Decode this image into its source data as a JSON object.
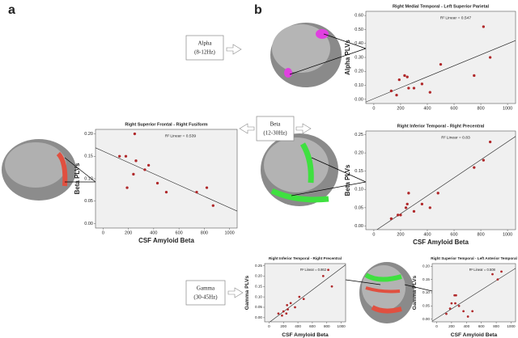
{
  "panel_labels": [
    "a",
    "b"
  ],
  "bands": [
    {
      "name": "Alpha",
      "range": "(8-12Hz)"
    },
    {
      "name": "Beta",
      "range": "(12-30Hz)"
    },
    {
      "name": "Gamma",
      "range": "(30-45Hz)"
    }
  ],
  "chart_data": [
    {
      "type": "scatter",
      "title": "Right Medial Temporal - Left Superior Parietal",
      "fit_label": "R² Linear = 0.547",
      "y_label": "Alpha PLVs",
      "color": "#b0282a",
      "x": [
        130,
        170,
        190,
        230,
        250,
        260,
        300,
        360,
        420,
        500,
        750,
        820,
        870
      ],
      "values": [
        0.06,
        0.03,
        0.14,
        0.17,
        0.16,
        0.08,
        0.08,
        0.11,
        0.05,
        0.25,
        0.17,
        0.52,
        0.3
      ],
      "xlim": [
        -60,
        1060
      ],
      "ylim": [
        -0.03,
        0.63
      ],
      "xticks": [
        0,
        200,
        400,
        600,
        800,
        1000
      ],
      "yticks": [
        {
          "value": 0,
          "label": "0.00"
        },
        {
          "value": 0.1,
          "label": "0.10"
        },
        {
          "value": 0.2,
          "label": "0.20"
        },
        {
          "value": 0.3,
          "label": "0.30"
        },
        {
          "value": 0.4,
          "label": "0.40"
        },
        {
          "value": 0.5,
          "label": "0.50"
        },
        {
          "value": 0.6,
          "label": "0.60"
        }
      ]
    },
    {
      "type": "scatter",
      "title": "Right Superior Frontal - Right Fusiform",
      "fit_label": "R² Linear = 0.539",
      "x_label": "CSF Amyloid Beta",
      "y_label": "Beta PLVs",
      "color": "#b0282a",
      "x": [
        130,
        180,
        190,
        240,
        250,
        260,
        330,
        360,
        430,
        500,
        740,
        820,
        870
      ],
      "values": [
        0.15,
        0.15,
        0.08,
        0.11,
        0.2,
        0.14,
        0.12,
        0.13,
        0.09,
        0.07,
        0.07,
        0.08,
        0.04
      ],
      "xlim": [
        -60,
        1060
      ],
      "ylim": [
        -0.01,
        0.21
      ],
      "xticks": [
        0,
        200,
        400,
        600,
        800,
        1000
      ],
      "yticks": [
        {
          "value": 0,
          "label": "0.00"
        },
        {
          "value": 0.05,
          "label": "0.05"
        },
        {
          "value": 0.1,
          "label": "0.10"
        },
        {
          "value": 0.15,
          "label": "0.15"
        },
        {
          "value": 0.2,
          "label": "0.20"
        }
      ]
    },
    {
      "type": "scatter",
      "title": "Right Inferior Temporal - Right Precentral",
      "fit_label": "R² Linear = 0.83",
      "x_label": "CSF Amyloid Beta",
      "y_label": "Beta PLVs",
      "color": "#b0282a",
      "x": [
        130,
        180,
        200,
        240,
        250,
        260,
        300,
        360,
        420,
        480,
        750,
        820,
        870
      ],
      "values": [
        0.02,
        0.03,
        0.03,
        0.05,
        0.06,
        0.09,
        0.04,
        0.06,
        0.05,
        0.09,
        0.16,
        0.18,
        0.23
      ],
      "xlim": [
        -60,
        1060
      ],
      "ylim": [
        -0.01,
        0.26
      ],
      "xticks": [
        0,
        200,
        400,
        600,
        800,
        1000
      ],
      "yticks": [
        {
          "value": 0,
          "label": "0.00"
        },
        {
          "value": 0.05,
          "label": "0.05"
        },
        {
          "value": 0.1,
          "label": "0.10"
        },
        {
          "value": 0.15,
          "label": "0.15"
        },
        {
          "value": 0.2,
          "label": "0.20"
        },
        {
          "value": 0.25,
          "label": "0.25"
        }
      ]
    },
    {
      "type": "scatter",
      "title": "Right Inferior Temporal - Right Precentral",
      "fit_label": "R² Linear = 0.862",
      "x_label": "CSF Amyloid Beta",
      "y_label": "Gamma PLVs",
      "color": "#b0282a",
      "x": [
        130,
        180,
        200,
        240,
        250,
        260,
        300,
        360,
        420,
        480,
        750,
        820,
        870
      ],
      "values": [
        0.02,
        0.01,
        0.03,
        0.02,
        0.06,
        0.04,
        0.07,
        0.05,
        0.1,
        0.09,
        0.2,
        0.23,
        0.15
      ],
      "xlim": [
        -60,
        1060
      ],
      "ylim": [
        -0.02,
        0.26
      ],
      "xticks": [
        0,
        200,
        400,
        600,
        800,
        1000
      ],
      "yticks": [
        {
          "value": 0,
          "label": "0.00"
        },
        {
          "value": 0.05,
          "label": "0.05"
        },
        {
          "value": 0.1,
          "label": "0.10"
        },
        {
          "value": 0.15,
          "label": "0.15"
        },
        {
          "value": 0.2,
          "label": "0.20"
        },
        {
          "value": 0.25,
          "label": "0.25"
        }
      ]
    },
    {
      "type": "scatter",
      "title": "Right Superior Temporal - Left Anterior Temporal",
      "fit_label": "R² Linear = 0.508",
      "x_label": "CSF Amyloid Beta",
      "y_label": "Gamma PLVs",
      "color": "#b0282a",
      "x": [
        130,
        180,
        200,
        240,
        250,
        260,
        300,
        360,
        420,
        480,
        750,
        820,
        870
      ],
      "values": [
        0.02,
        0.04,
        0.06,
        0.09,
        0.06,
        0.09,
        0.05,
        0.03,
        0.01,
        0.03,
        0.17,
        0.15,
        0.18
      ],
      "xlim": [
        -60,
        1060
      ],
      "ylim": [
        -0.01,
        0.21
      ],
      "xticks": [
        0,
        200,
        400,
        600,
        800,
        1000
      ],
      "yticks": [
        {
          "value": 0,
          "label": "0.00"
        },
        {
          "value": 0.05,
          "label": "0.05"
        },
        {
          "value": 0.1,
          "label": "0.10"
        },
        {
          "value": 0.15,
          "label": "0.15"
        },
        {
          "value": 0.2,
          "label": "0.20"
        }
      ]
    }
  ]
}
